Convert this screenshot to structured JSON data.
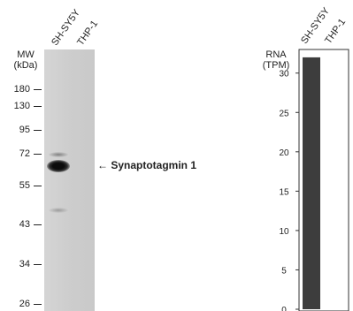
{
  "western_blot": {
    "lanes": [
      "SH-SY5Y",
      "THP-1"
    ],
    "mw_title_line1": "MW",
    "mw_title_line2": "(kDa)",
    "mw_markers": [
      "180",
      "130",
      "95",
      "72",
      "55",
      "43",
      "34",
      "26"
    ],
    "annotation_arrow": "←",
    "annotation_label": "Synaptotagmin 1"
  },
  "chart_data": {
    "type": "bar",
    "categories": [
      "SH-SY5Y",
      "THP-1"
    ],
    "values": [
      32,
      0
    ],
    "title": "",
    "ylabel_line1": "RNA",
    "ylabel_line2": "(TPM)",
    "ylim": [
      0,
      33
    ],
    "yticks": [
      0,
      5,
      10,
      15,
      20,
      25,
      30
    ],
    "grid": false,
    "bar_color": "#3d3d3d"
  }
}
